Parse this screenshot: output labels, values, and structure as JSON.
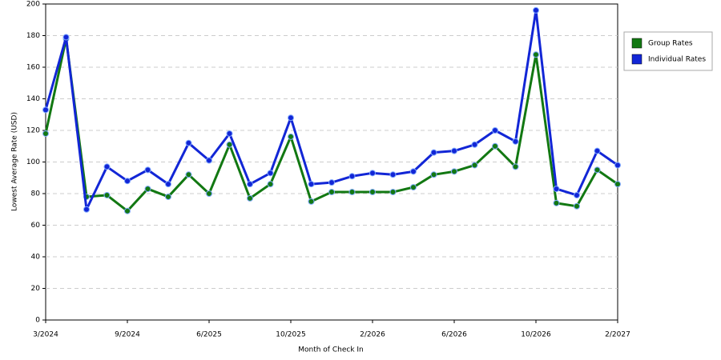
{
  "chart_data": {
    "type": "line",
    "x_label": "Month of Check In",
    "y_label": "Lowest Average Rate (USD)",
    "categories": [
      "3/2024",
      null,
      null,
      null,
      "9/2024",
      null,
      null,
      null,
      "6/2025",
      null,
      null,
      null,
      "10/2025",
      null,
      null,
      null,
      "2/2026",
      null,
      null,
      null,
      "6/2026",
      null,
      null,
      null,
      "10/2026",
      null,
      null,
      null,
      "2/2027"
    ],
    "series": [
      {
        "name": "Group Rates",
        "color": "#127812",
        "values": [
          118,
          178,
          78,
          79,
          69,
          83,
          78,
          92,
          80,
          111,
          77,
          86,
          116,
          75,
          81,
          81,
          81,
          81,
          84,
          92,
          94,
          98,
          110,
          97,
          168,
          74,
          72,
          95,
          86
        ]
      },
      {
        "name": "Individual Rates",
        "color": "#1226d6",
        "values": [
          133,
          179,
          70,
          97,
          88,
          95,
          86,
          112,
          101,
          118,
          86,
          93,
          128,
          86,
          87,
          91,
          93,
          92,
          94,
          106,
          107,
          111,
          120,
          113,
          196,
          83,
          79,
          107,
          98
        ]
      }
    ],
    "ylim": [
      0,
      200
    ],
    "yticks": [
      0,
      20,
      40,
      60,
      80,
      100,
      120,
      140,
      160,
      180,
      200
    ],
    "grid": true,
    "legend": "right"
  }
}
